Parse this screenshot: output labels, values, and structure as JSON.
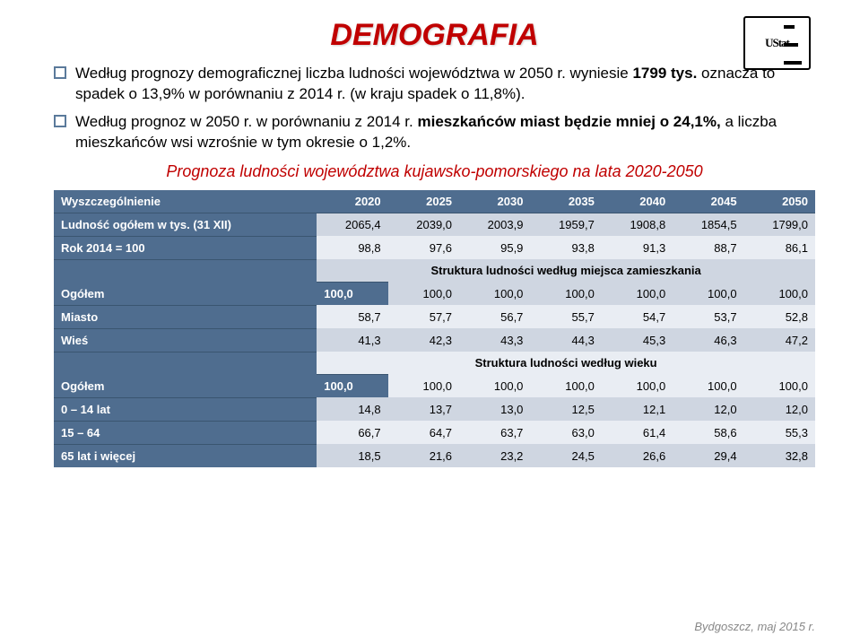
{
  "title": "DEMOGRAFIA",
  "logo": {
    "text": "UStat"
  },
  "bullets": [
    {
      "pre": "Według prognozy demograficznej liczba ludności województwa w 2050 r. wyniesie ",
      "bold": "1799 tys.",
      "post": " oznacza to spadek o 13,9% w porównaniu z 2014 r.   (w kraju spadek o 11,8%)."
    },
    {
      "pre": "Według prognoz w 2050 r.  w porównaniu z 2014 r.  ",
      "bold": "mieszkańców miast będzie mniej o 24,1%,",
      "post": "  a liczba mieszkańców wsi wzrośnie w tym okresie o 1,2%."
    }
  ],
  "subtitle": "Prognoza ludności województwa kujawsko-pomorskiego na lata 2020-2050",
  "table": {
    "header_label": "Wyszczególnienie",
    "years": [
      "2020",
      "2025",
      "2030",
      "2035",
      "2040",
      "2045",
      "2050"
    ],
    "section1": "Struktura ludności według miejsca zamieszkania",
    "section2": "Struktura ludności według wieku",
    "rows": {
      "pop": {
        "label": "Ludność ogółem w tys. (31 XII)",
        "vals": [
          "2065,4",
          "2039,0",
          "2003,9",
          "1959,7",
          "1908,8",
          "1854,5",
          "1799,0"
        ]
      },
      "idx": {
        "label": "Rok 2014 = 100",
        "vals": [
          "98,8",
          "97,6",
          "95,9",
          "93,8",
          "91,3",
          "88,7",
          "86,1"
        ]
      },
      "og1": {
        "label": "Ogółem",
        "vals": [
          "100,0",
          "100,0",
          "100,0",
          "100,0",
          "100,0",
          "100,0",
          "100,0"
        ]
      },
      "city": {
        "label": "Miasto",
        "vals": [
          "58,7",
          "57,7",
          "56,7",
          "55,7",
          "54,7",
          "53,7",
          "52,8"
        ]
      },
      "vill": {
        "label": "Wieś",
        "vals": [
          "41,3",
          "42,3",
          "43,3",
          "44,3",
          "45,3",
          "46,3",
          "47,2"
        ]
      },
      "og2": {
        "label": "Ogółem",
        "vals": [
          "100,0",
          "100,0",
          "100,0",
          "100,0",
          "100,0",
          "100,0",
          "100,0"
        ]
      },
      "a0": {
        "label": "0 – 14 lat",
        "vals": [
          "14,8",
          "13,7",
          "13,0",
          "12,5",
          "12,1",
          "12,0",
          "12,0"
        ]
      },
      "a15": {
        "label": "15 – 64",
        "vals": [
          "66,7",
          "64,7",
          "63,7",
          "63,0",
          "61,4",
          "58,6",
          "55,3"
        ]
      },
      "a65": {
        "label": "65 lat i więcej",
        "vals": [
          "18,5",
          "21,6",
          "23,2",
          "24,5",
          "26,6",
          "29,4",
          "32,8"
        ]
      }
    }
  },
  "footer": "Bydgoszcz, maj 2015 r.",
  "colors": {
    "title": "#c00000",
    "header_bg": "#4f6d8f",
    "row_alt_a": "#cfd6e1",
    "row_alt_b": "#e9edf3"
  }
}
